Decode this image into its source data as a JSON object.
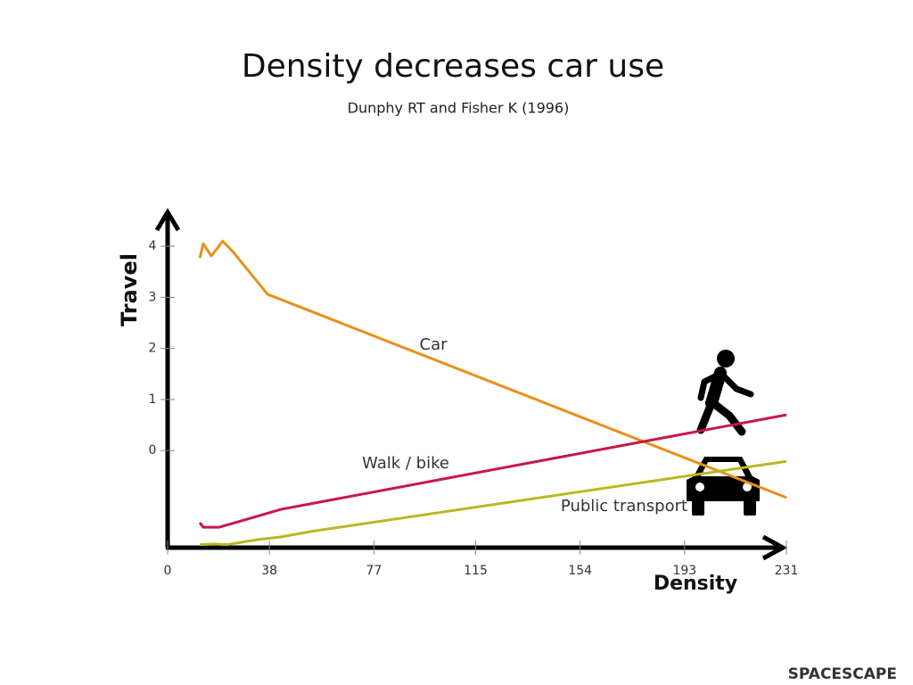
{
  "chart_data": {
    "type": "line",
    "title": "Density decreases car use",
    "subtitle": "Dunphy RT and Fisher K (1996)",
    "x_label": "Density",
    "y_label": "Travel",
    "xlim": [
      0,
      231
    ],
    "xticks": [
      0,
      38,
      77,
      115,
      154,
      193,
      231
    ],
    "ylim": [
      -1.9,
      4.7
    ],
    "yticks": [
      0,
      1,
      2,
      3,
      4
    ],
    "grid": false,
    "series": [
      {
        "name": "Car",
        "color": "#e8901a",
        "x": [
          12,
          13.3,
          16.3,
          20.6,
          24.6,
          37.3,
          231
        ],
        "values": [
          3.77,
          4.05,
          3.81,
          4.1,
          3.88,
          3.06,
          -0.92
        ]
      },
      {
        "name": "Walk / bike",
        "color": "#c8174a",
        "x": [
          12,
          13.3,
          19.3,
          42.3,
          231
        ],
        "values": [
          -1.41,
          -1.5,
          -1.5,
          -1.15,
          0.7
        ]
      },
      {
        "name": "Public transport",
        "color": "#b8b820",
        "x": [
          12,
          17.3,
          22.3,
          34,
          42.3,
          53.9,
          231
        ],
        "values": [
          -1.84,
          -1.83,
          -1.84,
          -1.74,
          -1.69,
          -1.58,
          -0.21
        ]
      }
    ],
    "logo": "SPACESCAPE"
  }
}
